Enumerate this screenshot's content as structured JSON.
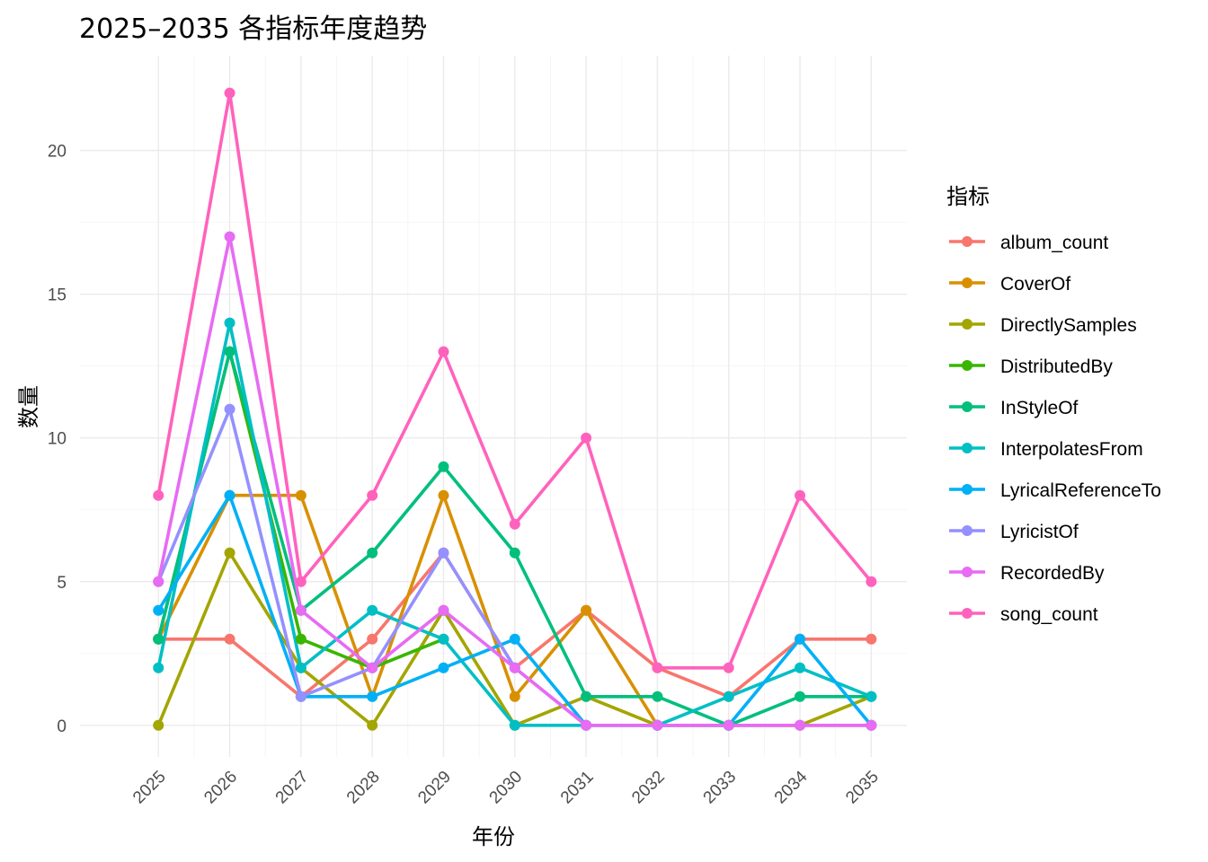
{
  "chart_data": {
    "type": "line",
    "title": "2025–2035 各指标年度趋势",
    "xlabel": "年份",
    "ylabel": "数量",
    "legend_title": "指标",
    "legend_position": "right",
    "grid": true,
    "x": [
      2025,
      2026,
      2027,
      2028,
      2029,
      2030,
      2031,
      2032,
      2033,
      2034,
      2035
    ],
    "x_tick_labels": [
      "2025",
      "2026",
      "2027",
      "2028",
      "2029",
      "2030",
      "2031",
      "2032",
      "2033",
      "2034",
      "2035"
    ],
    "y_ticks": [
      0,
      5,
      10,
      15,
      20
    ],
    "ylim": [
      -1.1,
      23.3
    ],
    "series": [
      {
        "name": "album_count",
        "color": "#F8766D",
        "values": [
          3,
          3,
          1,
          3,
          6,
          2,
          4,
          2,
          1,
          3,
          3
        ]
      },
      {
        "name": "CoverOf",
        "color": "#D89000",
        "values": [
          3,
          8,
          8,
          1,
          8,
          1,
          4,
          0,
          0,
          0,
          0
        ]
      },
      {
        "name": "DirectlySamples",
        "color": "#A3A500",
        "values": [
          0,
          6,
          2,
          0,
          4,
          0,
          1,
          0,
          0,
          0,
          1
        ]
      },
      {
        "name": "DistributedBy",
        "color": "#39B600",
        "values": [
          3,
          13,
          3,
          2,
          3,
          null,
          null,
          null,
          null,
          null,
          null
        ]
      },
      {
        "name": "InStyleOf",
        "color": "#00BF7D",
        "values": [
          3,
          13,
          4,
          6,
          9,
          6,
          1,
          1,
          0,
          1,
          1
        ]
      },
      {
        "name": "InterpolatesFrom",
        "color": "#00BFC4",
        "values": [
          2,
          14,
          2,
          4,
          3,
          0,
          0,
          0,
          1,
          2,
          1
        ]
      },
      {
        "name": "LyricalReferenceTo",
        "color": "#00B0F6",
        "values": [
          4,
          8,
          1,
          1,
          2,
          3,
          0,
          0,
          0,
          3,
          0
        ]
      },
      {
        "name": "LyricistOf",
        "color": "#9590FF",
        "values": [
          5,
          11,
          1,
          2,
          6,
          2,
          0,
          0,
          0,
          0,
          0
        ]
      },
      {
        "name": "RecordedBy",
        "color": "#E76BF3",
        "values": [
          5,
          17,
          4,
          2,
          4,
          2,
          0,
          0,
          0,
          0,
          0
        ]
      },
      {
        "name": "song_count",
        "color": "#FF62BC",
        "values": [
          8,
          22,
          5,
          8,
          13,
          7,
          10,
          2,
          2,
          8,
          5
        ]
      }
    ]
  }
}
